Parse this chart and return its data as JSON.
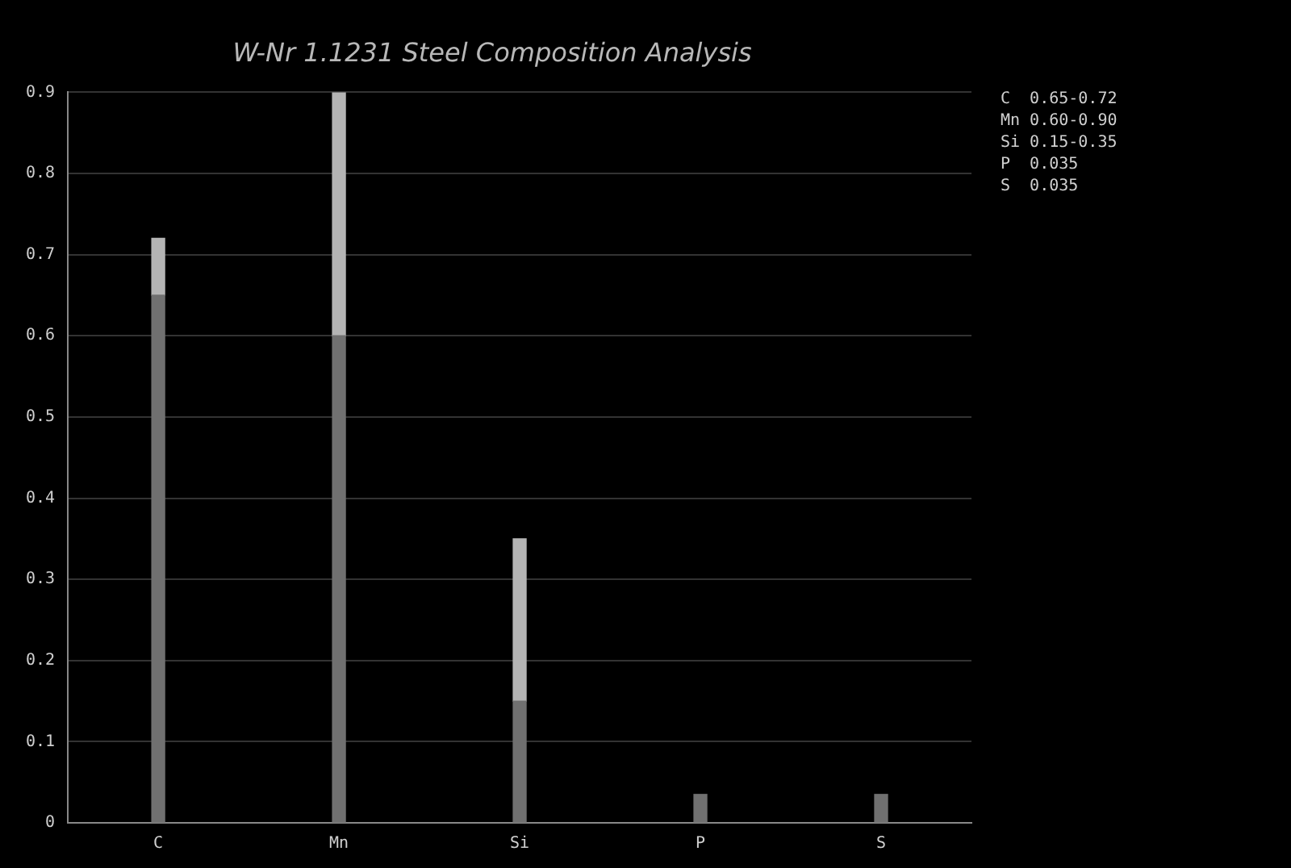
{
  "chart_data": {
    "type": "bar",
    "title": "W-Nr 1.1231 Steel Composition Analysis",
    "categories": [
      "C",
      "Mn",
      "Si",
      "P",
      "S"
    ],
    "stacked": true,
    "series": [
      {
        "color": "#707070",
        "values": [
          0.65,
          0.6,
          0.15,
          0.035,
          0.035
        ]
      },
      {
        "color": "#b4b4b4",
        "values": [
          0.07,
          0.3,
          0.2,
          null,
          null
        ]
      }
    ],
    "ylim": [
      0,
      0.9
    ],
    "yticks": [
      0,
      0.1,
      0.2,
      0.3,
      0.4,
      0.5,
      0.6,
      0.7,
      0.8,
      0.9
    ],
    "grid": "y",
    "legend": false,
    "annotations": [
      "C  0.65-0.72",
      "Mn 0.60-0.90",
      "Si 0.15-0.35",
      "P  0.035",
      "S  0.035"
    ]
  }
}
